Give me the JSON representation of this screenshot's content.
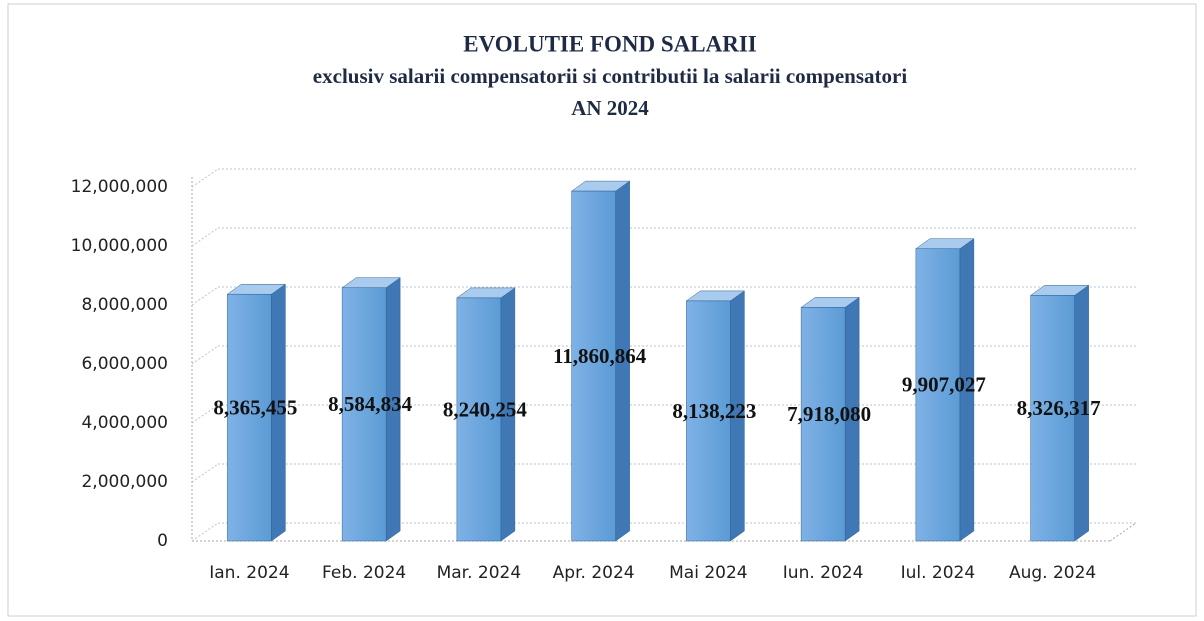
{
  "chart_data": {
    "type": "bar3d",
    "title": "EVOLUTIE FOND SALARII",
    "subtitle": [
      "exclusiv salarii compensatorii si contributii la salarii compensatori",
      "AN 2024"
    ],
    "categories": [
      "Ian. 2024",
      "Feb. 2024",
      "Mar. 2024",
      "Apr. 2024",
      "Mai 2024",
      "Iun. 2024",
      "Iul. 2024",
      "Aug. 2024"
    ],
    "values": [
      8365455,
      8584834,
      8240254,
      11860864,
      8138223,
      7918080,
      9907027,
      8326317
    ],
    "value_labels": [
      "8,365,455",
      "8,584,834",
      "8,240,254",
      "11,860,864",
      "8,138,223",
      "7,918,080",
      "9,907,027",
      "8,326,317"
    ],
    "color": "#5b9bd5",
    "ylim": [
      0,
      12000000
    ],
    "yticks": [
      0,
      {
        "value": 2000000,
        "label": "2,000,000"
      },
      {
        "value": 4000000,
        "label": "4,000,000"
      },
      {
        "value": 6000000,
        "label": "6,000,000"
      },
      {
        "value": 8000000,
        "label": "8,000,000"
      },
      {
        "value": 10000000,
        "label": "10,000,000"
      },
      {
        "value": 12000000,
        "label": "12,000,000"
      }
    ],
    "grid": true
  }
}
